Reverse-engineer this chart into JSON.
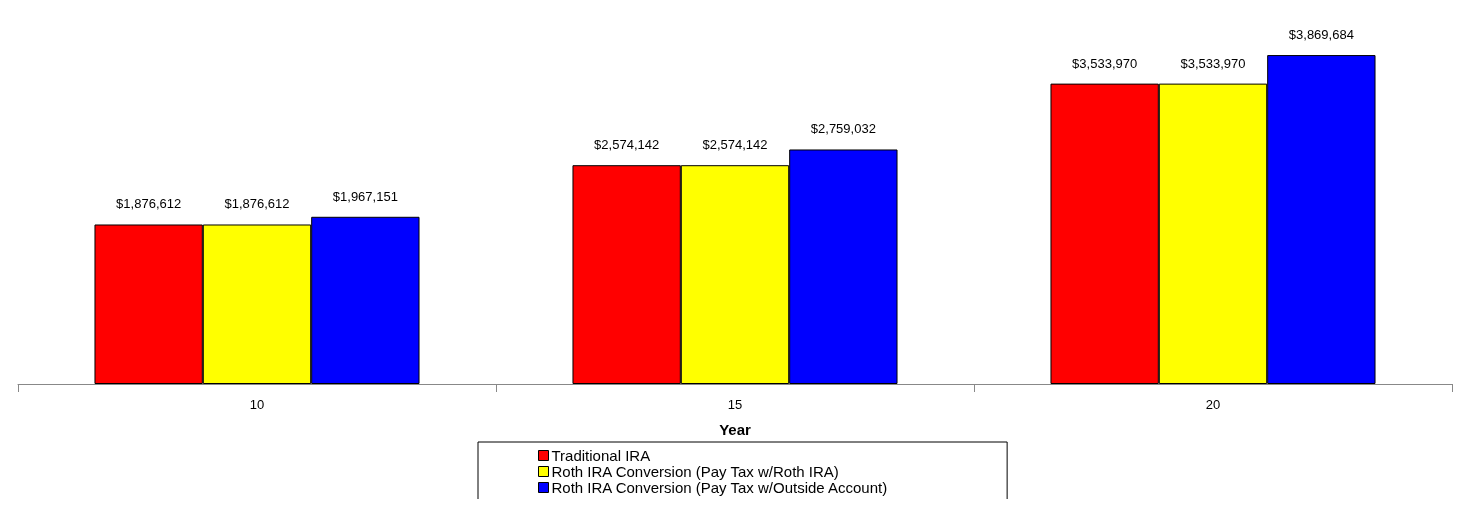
{
  "chart_data": {
    "type": "bar",
    "xlabel": "Year",
    "categories": [
      "10",
      "15",
      "20"
    ],
    "series": [
      {
        "name": "Traditional IRA",
        "color": "#ff0000",
        "values": [
          1876612,
          2574142,
          3533970
        ],
        "value_labels": [
          "$1,876,612",
          "$2,574,142",
          "$3,533,970"
        ]
      },
      {
        "name": "Roth IRA Conversion (Pay Tax w/Roth IRA)",
        "color": "#ffff00",
        "values": [
          1876612,
          2574142,
          3533970
        ],
        "value_labels": [
          "$1,876,612",
          "$2,574,142",
          "$3,533,970"
        ]
      },
      {
        "name": "Roth IRA Conversion (Pay Tax w/Outside Account)",
        "color": "#0000ff",
        "values": [
          1967151,
          2759032,
          3869684
        ],
        "value_labels": [
          "$1,967,151",
          "$2,759,032",
          "$3,869,684"
        ]
      }
    ],
    "legend": "bottom",
    "grid": false
  }
}
